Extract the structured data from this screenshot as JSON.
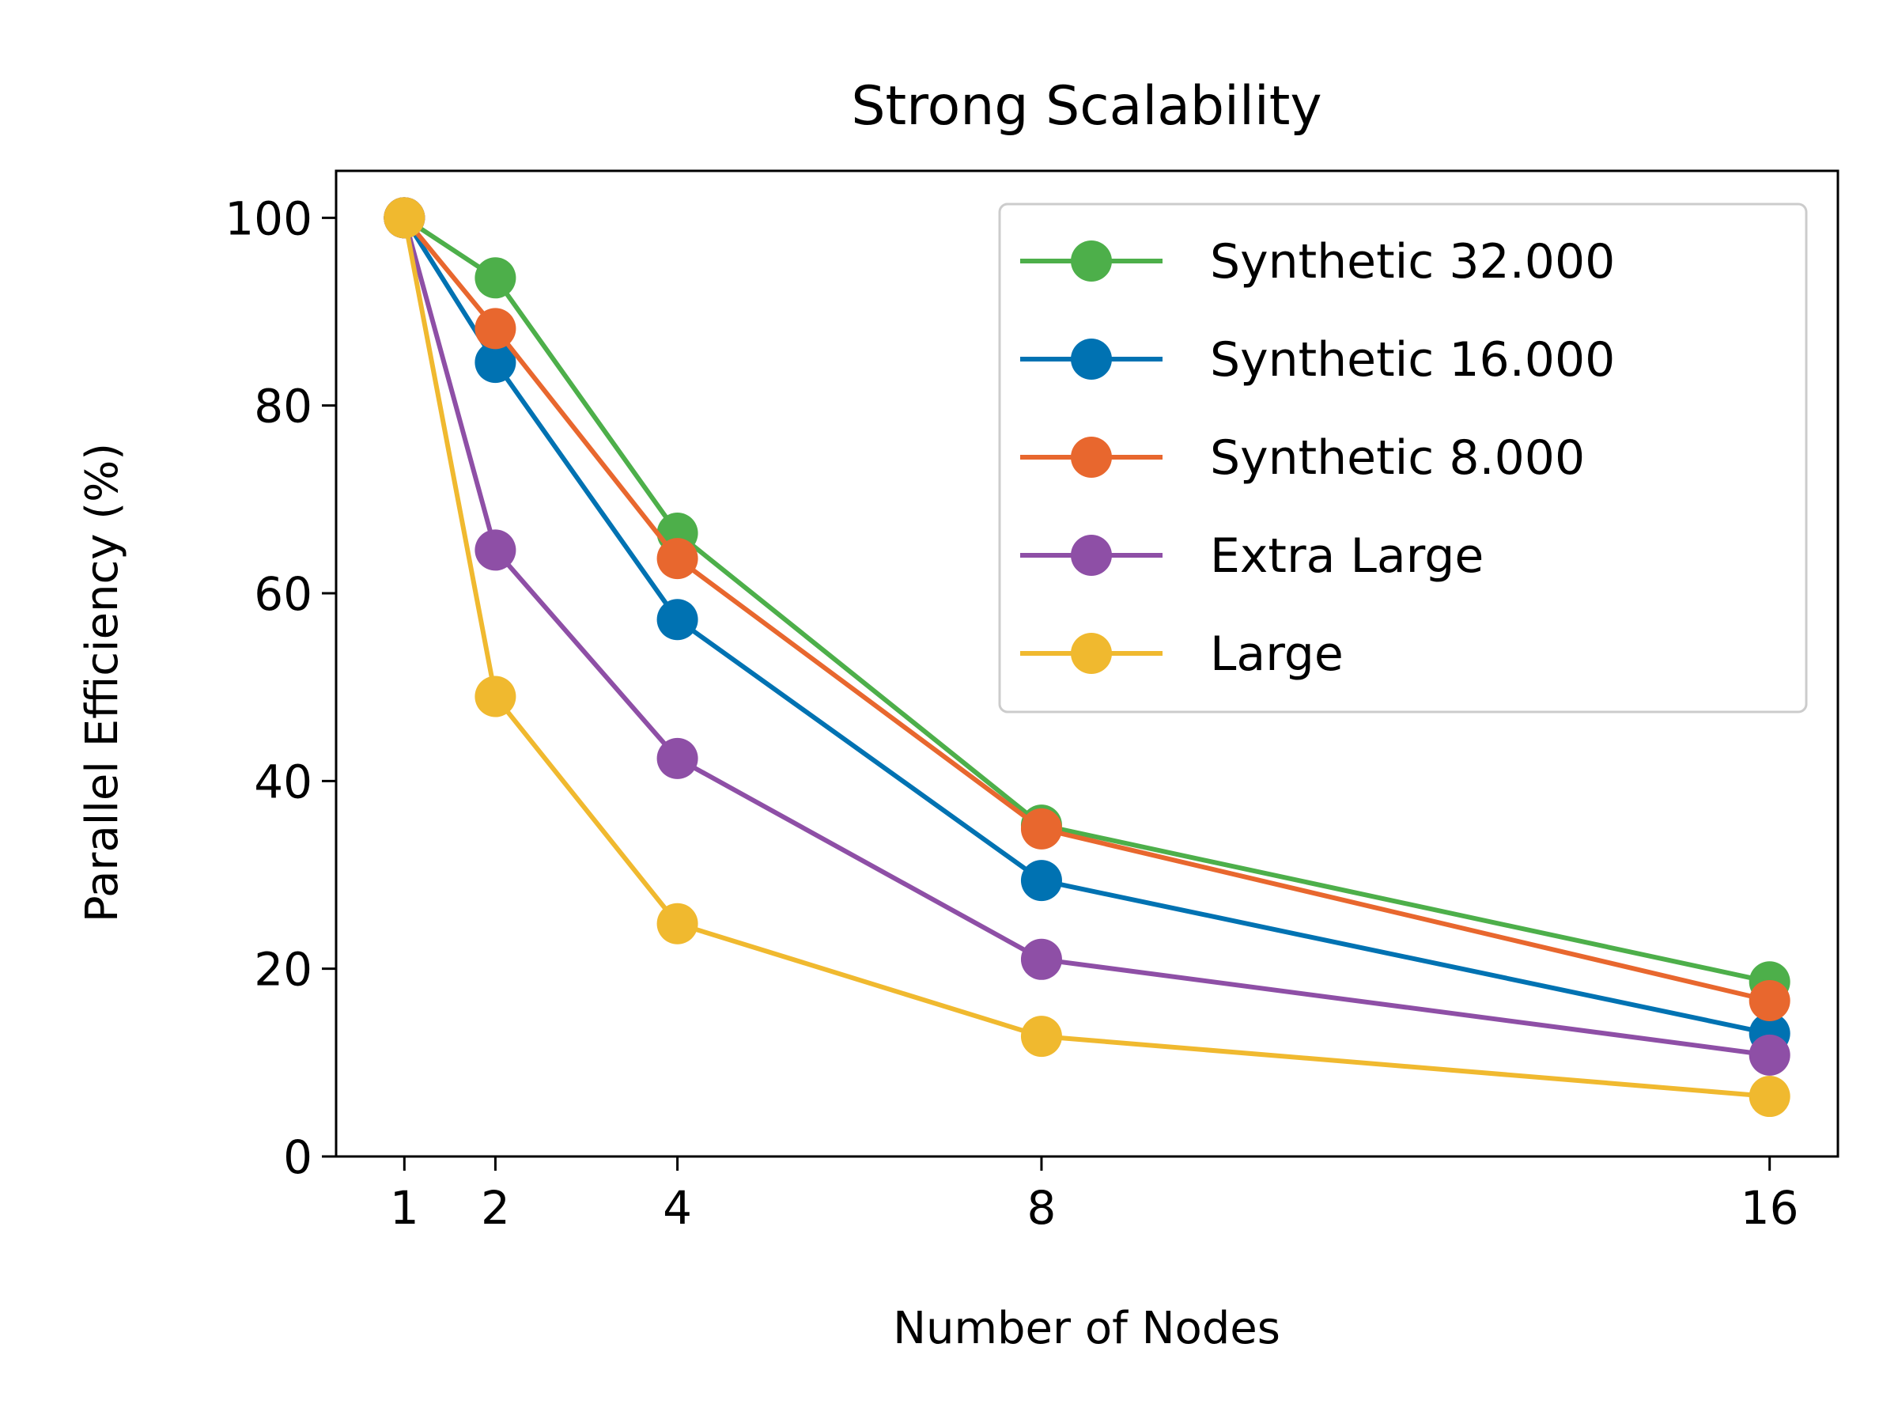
{
  "chart_data": {
    "type": "line",
    "title": "Strong Scalability",
    "xlabel": "Number of Nodes",
    "ylabel": "Parallel Efficiency (%)",
    "x": [
      1,
      2,
      4,
      8,
      16
    ],
    "x_ticks": [
      "1",
      "2",
      "4",
      "8",
      "16"
    ],
    "y_ticks": [
      "0",
      "20",
      "40",
      "60",
      "80",
      "100"
    ],
    "xlim": [
      0.25,
      16.75
    ],
    "ylim": [
      0,
      105
    ],
    "grid": false,
    "legend_position": "top-right",
    "series": [
      {
        "name": "Synthetic 32.000",
        "color": "#4daf4a",
        "values": [
          100,
          93.6,
          66.4,
          35.3,
          18.6
        ]
      },
      {
        "name": "Synthetic 16.000",
        "color": "#0072b2",
        "values": [
          100,
          84.6,
          57.2,
          29.4,
          13.1
        ]
      },
      {
        "name": "Synthetic 8.000",
        "color": "#e8672e",
        "values": [
          100,
          88.2,
          63.7,
          34.9,
          16.6
        ]
      },
      {
        "name": "Extra Large",
        "color": "#8e4fa6",
        "values": [
          100,
          64.6,
          42.4,
          21.0,
          10.8
        ]
      },
      {
        "name": "Large",
        "color": "#f0b92f",
        "values": [
          100,
          49.0,
          24.8,
          12.8,
          6.4
        ]
      }
    ]
  }
}
